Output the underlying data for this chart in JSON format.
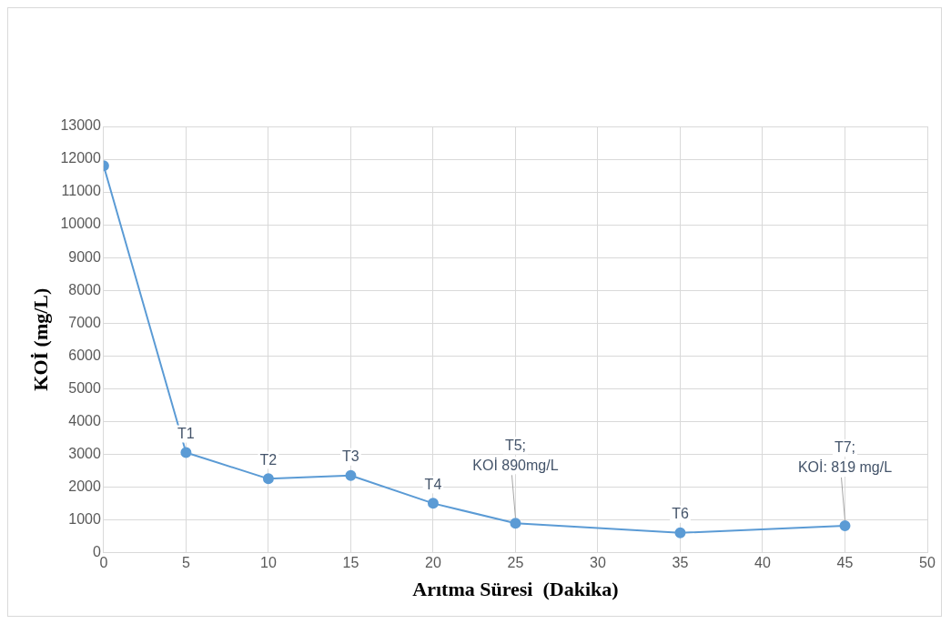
{
  "chart_data": {
    "type": "line",
    "xlabel": "Arıtma Süresi  (Dakika)",
    "ylabel": "KOİ (mg/L)",
    "x": [
      0,
      5,
      10,
      15,
      20,
      25,
      35,
      45
    ],
    "series": [
      {
        "color": "#5b9bd5",
        "values": [
          11800,
          3050,
          2250,
          2350,
          1500,
          890,
          600,
          819
        ]
      }
    ],
    "xlim": [
      0,
      50
    ],
    "xticks": [
      0,
      5,
      10,
      15,
      20,
      25,
      30,
      35,
      40,
      45,
      50
    ],
    "ylim": [
      0,
      13000
    ],
    "yticks": [
      0,
      1000,
      2000,
      3000,
      4000,
      5000,
      6000,
      7000,
      8000,
      9000,
      10000,
      11000,
      12000,
      13000
    ],
    "grid": true,
    "legend": false,
    "marker": "circle",
    "line_style": "solid",
    "annotations": [
      {
        "text": "T1",
        "x": 5,
        "y": 3050
      },
      {
        "text": "T2",
        "x": 10,
        "y": 2250
      },
      {
        "text": "T3",
        "x": 15,
        "y": 2350
      },
      {
        "text": "T4",
        "x": 20,
        "y": 1500
      },
      {
        "text": "T5;\nKOİ 890mg/L",
        "x": 25,
        "y": 890
      },
      {
        "text": "T6",
        "x": 35,
        "y": 600
      },
      {
        "text": "T7;\nKOİ: 819 mg/L",
        "x": 45,
        "y": 819
      }
    ]
  }
}
